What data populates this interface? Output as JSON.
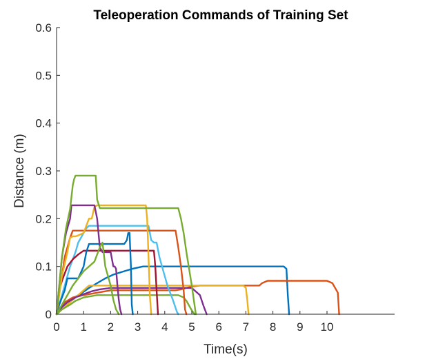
{
  "chart_data": {
    "type": "line",
    "title": "Teleoperation Commands of Training Set",
    "xlabel": "Time(s)",
    "ylabel": "Distance (m)",
    "xlim": [
      0,
      12.5
    ],
    "ylim": [
      0,
      0.6
    ],
    "xticks": [
      0,
      1,
      2,
      3,
      4,
      5,
      6,
      7,
      8,
      9,
      10
    ],
    "xtick_labels": [
      "0",
      "1",
      "2",
      "3",
      "4",
      "5",
      "6",
      "7",
      "8",
      "9",
      "10"
    ],
    "yticks": [
      0,
      0.1,
      0.2,
      0.3,
      0.4,
      0.5,
      0.6
    ],
    "ytick_labels": [
      "0",
      "0.1",
      "0.2",
      "0.3",
      "0.4",
      "0.5",
      "0.6"
    ],
    "grid": false,
    "series": [
      {
        "color": "#0072BD",
        "x": [
          0,
          0.1,
          0.2,
          0.5,
          0.9,
          1.2,
          1.5,
          1.8,
          2.1,
          2.5,
          2.8,
          3.2,
          4.0,
          5.0,
          6.0,
          7.0,
          8.0,
          8.4,
          8.5,
          8.55,
          8.6
        ],
        "y": [
          0,
          0.008,
          0.015,
          0.03,
          0.043,
          0.055,
          0.065,
          0.075,
          0.083,
          0.09,
          0.095,
          0.1,
          0.1,
          0.1,
          0.1,
          0.1,
          0.1,
          0.1,
          0.095,
          0.04,
          0
        ]
      },
      {
        "color": "#D95319",
        "x": [
          0,
          0.1,
          0.3,
          0.6,
          1.0,
          1.5,
          2.0,
          3.0,
          4.0,
          4.4,
          4.6,
          4.8,
          5.0,
          5.3,
          6.0,
          7.0,
          7.5,
          7.6,
          7.8,
          8.0,
          9.0,
          10.0,
          10.2,
          10.3,
          10.4,
          10.45
        ],
        "y": [
          0,
          0.01,
          0.025,
          0.035,
          0.04,
          0.045,
          0.05,
          0.05,
          0.05,
          0.05,
          0.052,
          0.055,
          0.058,
          0.06,
          0.06,
          0.06,
          0.06,
          0.065,
          0.07,
          0.07,
          0.07,
          0.07,
          0.065,
          0.055,
          0.045,
          0
        ]
      },
      {
        "color": "#EDB120",
        "x": [
          0,
          0.2,
          0.6,
          1.0,
          1.2,
          1.5,
          2.0,
          3.0,
          4.0,
          5.0,
          6.0,
          6.9,
          7.0,
          7.05,
          7.1
        ],
        "y": [
          0,
          0.01,
          0.03,
          0.05,
          0.06,
          0.06,
          0.06,
          0.06,
          0.06,
          0.06,
          0.06,
          0.06,
          0.055,
          0.03,
          0
        ]
      },
      {
        "color": "#7E2F8E",
        "x": [
          0,
          0.2,
          0.4,
          0.7,
          1.0,
          1.3,
          1.6,
          2.0,
          2.5,
          3.0,
          4.0,
          5.0,
          5.3,
          5.45,
          5.55
        ],
        "y": [
          0,
          0.015,
          0.025,
          0.035,
          0.042,
          0.048,
          0.052,
          0.055,
          0.055,
          0.055,
          0.055,
          0.055,
          0.04,
          0.015,
          0
        ]
      },
      {
        "color": "#77AC30",
        "x": [
          0,
          0.1,
          0.2,
          0.5,
          0.7,
          1.0,
          1.5,
          2.0,
          3.0,
          4.0,
          4.5,
          4.7,
          4.8,
          4.9,
          5.0,
          5.1
        ],
        "y": [
          0,
          0.005,
          0.01,
          0.02,
          0.028,
          0.035,
          0.04,
          0.04,
          0.04,
          0.04,
          0.04,
          0.035,
          0.028,
          0.018,
          0.008,
          0
        ]
      },
      {
        "color": "#4DBEEE",
        "x": [
          0,
          0.2,
          0.3,
          0.5,
          0.7,
          0.8,
          0.9,
          1.0,
          1.1,
          1.2,
          1.5,
          2.0,
          3.0,
          3.4,
          3.5,
          3.6,
          3.7,
          3.8,
          3.95,
          4.1,
          4.3,
          4.45,
          4.5
        ],
        "y": [
          0,
          0.04,
          0.06,
          0.1,
          0.13,
          0.15,
          0.16,
          0.17,
          0.18,
          0.185,
          0.185,
          0.185,
          0.185,
          0.185,
          0.155,
          0.15,
          0.15,
          0.12,
          0.09,
          0.06,
          0.03,
          0.005,
          0
        ]
      },
      {
        "color": "#A2142F",
        "x": [
          0,
          0.1,
          0.2,
          0.4,
          0.6,
          0.8,
          1.0,
          2.0,
          3.0,
          3.6,
          3.65,
          3.7,
          3.75
        ],
        "y": [
          0,
          0.05,
          0.07,
          0.1,
          0.115,
          0.125,
          0.133,
          0.133,
          0.133,
          0.133,
          0.1,
          0.05,
          0
        ]
      },
      {
        "color": "#0072BD",
        "x": [
          0,
          0.1,
          0.3,
          0.4,
          0.8,
          1.0,
          1.1,
          1.2,
          1.5,
          2.0,
          2.5,
          2.6,
          2.65,
          2.7,
          2.75,
          2.78,
          2.82
        ],
        "y": [
          0,
          0.02,
          0.05,
          0.075,
          0.075,
          0.1,
          0.13,
          0.147,
          0.147,
          0.147,
          0.147,
          0.155,
          0.17,
          0.17,
          0.1,
          0.02,
          0
        ]
      },
      {
        "color": "#D95319",
        "x": [
          0,
          0.1,
          0.2,
          0.3,
          0.5,
          0.6,
          1.0,
          2.0,
          3.0,
          4.0,
          4.4,
          4.5,
          4.6,
          4.7,
          4.75,
          4.8
        ],
        "y": [
          0,
          0.05,
          0.08,
          0.12,
          0.16,
          0.175,
          0.175,
          0.175,
          0.175,
          0.175,
          0.175,
          0.14,
          0.1,
          0.05,
          0.01,
          0
        ]
      },
      {
        "color": "#EDB120",
        "x": [
          0,
          0.1,
          0.2,
          0.4,
          0.5,
          0.6,
          0.7,
          0.8,
          1.0,
          1.2,
          1.3,
          1.4,
          1.5,
          2.0,
          3.0,
          3.3,
          3.35,
          3.4,
          3.45,
          3.5
        ],
        "y": [
          0,
          0.04,
          0.08,
          0.13,
          0.16,
          0.163,
          0.163,
          0.165,
          0.17,
          0.2,
          0.2,
          0.225,
          0.228,
          0.228,
          0.228,
          0.228,
          0.2,
          0.12,
          0.04,
          0
        ]
      },
      {
        "color": "#7E2F8E",
        "x": [
          0,
          0.1,
          0.2,
          0.35,
          0.5,
          0.55,
          1.0,
          1.4,
          1.5,
          1.6,
          1.7,
          2.0,
          2.1,
          2.15,
          2.2,
          2.25,
          2.3,
          2.35,
          2.4
        ],
        "y": [
          0,
          0.06,
          0.12,
          0.17,
          0.2,
          0.228,
          0.228,
          0.228,
          0.2,
          0.14,
          0.13,
          0.13,
          0.1,
          0.1,
          0.095,
          0.06,
          0.03,
          0.01,
          0
        ]
      },
      {
        "color": "#77AC30",
        "x": [
          0,
          0.1,
          0.2,
          0.35,
          0.5,
          0.6,
          0.65,
          0.7,
          1.0,
          1.45,
          1.5,
          1.6,
          2.0,
          3.0,
          4.5,
          4.6,
          4.7,
          4.8,
          5.0,
          5.1,
          5.15
        ],
        "y": [
          0,
          0.06,
          0.12,
          0.18,
          0.22,
          0.27,
          0.283,
          0.29,
          0.29,
          0.29,
          0.24,
          0.222,
          0.222,
          0.222,
          0.222,
          0.2,
          0.17,
          0.13,
          0.06,
          0.02,
          0
        ]
      },
      {
        "color": "#77AC30",
        "x": [
          0,
          0.3,
          0.6,
          1.0,
          1.4,
          1.6,
          1.7,
          1.8,
          2.0,
          2.1,
          2.2,
          2.3
        ],
        "y": [
          0,
          0.03,
          0.06,
          0.09,
          0.11,
          0.14,
          0.15,
          0.1,
          0.06,
          0.03,
          0.01,
          0
        ]
      }
    ]
  }
}
